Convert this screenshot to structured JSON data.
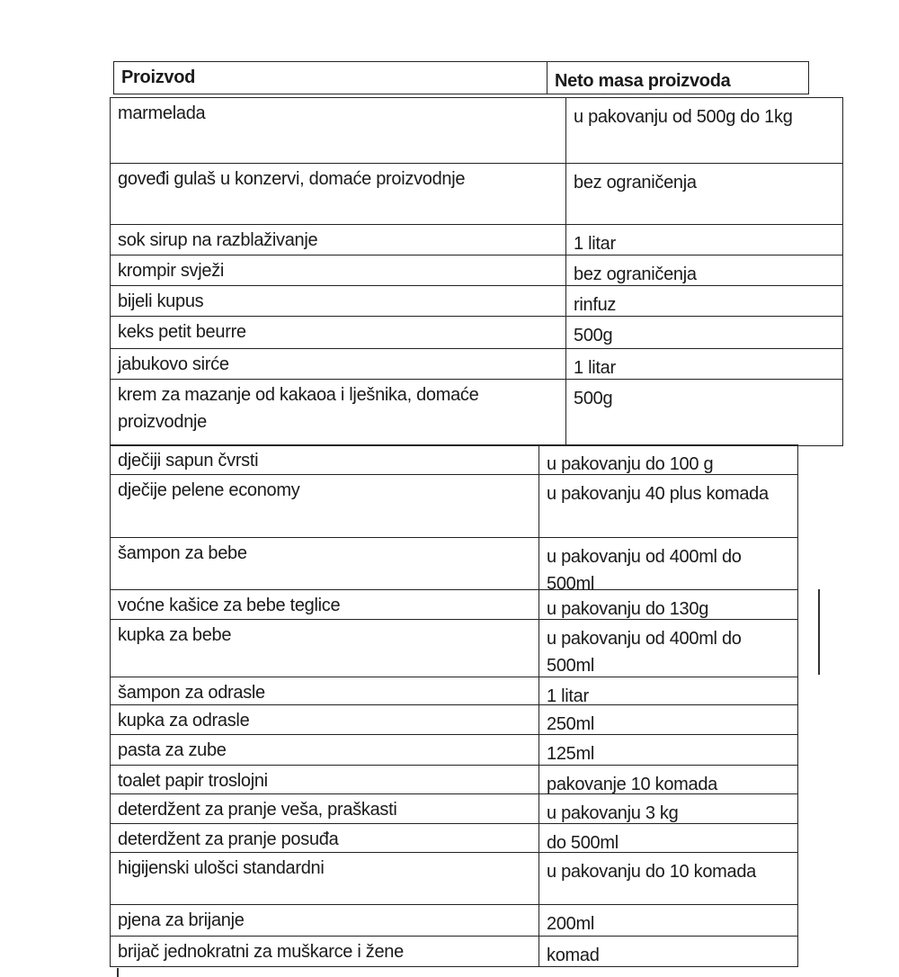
{
  "header": {
    "col1": "Proizvod",
    "col2": "Neto masa proizvoda"
  },
  "table_food": [
    {
      "product": "marmelada",
      "mass": "u pakovanju od 500g do 1kg"
    },
    {
      "product": "goveđi gulaš u konzervi, domaće proizvodnje",
      "mass": "bez ograničenja"
    },
    {
      "product": "sok sirup na razblaživanje",
      "mass": "1 litar"
    },
    {
      "product": "krompir svježi",
      "mass": "bez ograničenja"
    },
    {
      "product": "bijeli kupus",
      "mass": "rinfuz"
    },
    {
      "product": "keks petit beurre",
      "mass": "500g"
    },
    {
      "product": "jabukovo sirće",
      "mass": "1 litar"
    },
    {
      "product": "krem za mazanje od kakaoa i lješnika, domaće proizvodnje",
      "mass": "500g"
    }
  ],
  "table_hygiene": [
    {
      "product": "dječiji sapun čvrsti",
      "mass": "u pakovanju do 100 g"
    },
    {
      "product": "dječije pelene economy",
      "mass": "u pakovanju 40 plus komada"
    },
    {
      "product": "šampon za bebe",
      "mass": "u pakovanju od 400ml do 500ml"
    },
    {
      "product": "voćne kašice za bebe teglice",
      "mass": "u pakovanju do 130g"
    },
    {
      "product": "kupka za bebe",
      "mass": "u pakovanju od 400ml do 500ml"
    },
    {
      "product": "šampon za odrasle",
      "mass": "1 litar"
    },
    {
      "product": "kupka za odrasle",
      "mass": "250ml"
    },
    {
      "product": "pasta za zube",
      "mass": "125ml"
    },
    {
      "product": "toalet papir troslojni",
      "mass": "pakovanje 10 komada"
    },
    {
      "product": "deterdžent za pranje veša, praškasti",
      "mass": "u pakovanju 3 kg"
    },
    {
      "product": "deterdžent za pranje posuđa",
      "mass": "do 500ml"
    },
    {
      "product": "higijenski ulošci standardni",
      "mass": "u pakovanju do 10 komada"
    },
    {
      "product": "pjena za brijanje",
      "mass": "200ml"
    },
    {
      "product": "brijač jednokratni za muškarce i žene",
      "mass": "komad"
    }
  ]
}
